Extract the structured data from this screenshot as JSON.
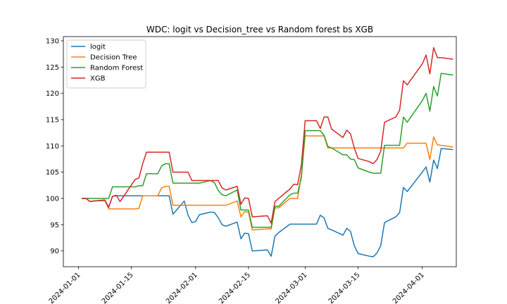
{
  "chart_data": {
    "type": "line",
    "title": "WDC: logit vs Decision_tree vs Random forest bs XGB",
    "xlabel": "",
    "ylabel": "",
    "xlim": [
      "2023-12-28",
      "2024-04-10"
    ],
    "ylim": [
      87.0,
      130.8
    ],
    "x_ticks": [
      "2024-01-01",
      "2024-01-15",
      "2024-02-01",
      "2024-02-15",
      "2024-03-01",
      "2024-03-15",
      "2024-04-01"
    ],
    "y_ticks": [
      90,
      95,
      100,
      105,
      110,
      115,
      120,
      125,
      130
    ],
    "grid": false,
    "legend_position": "upper left",
    "series": [
      {
        "name": "logit",
        "color": "#1f77b4",
        "points": [
          [
            "2024-01-02",
            100.0
          ],
          [
            "2024-01-03",
            100.0
          ],
          [
            "2024-01-04",
            99.4
          ],
          [
            "2024-01-05",
            99.5
          ],
          [
            "2024-01-08",
            99.7
          ],
          [
            "2024-01-09",
            98.3
          ],
          [
            "2024-01-10",
            100.4
          ],
          [
            "2024-01-11",
            100.5
          ],
          [
            "2024-01-12",
            100.5
          ],
          [
            "2024-01-16",
            100.5
          ],
          [
            "2024-01-17",
            100.5
          ],
          [
            "2024-01-18",
            100.5
          ],
          [
            "2024-01-19",
            100.5
          ],
          [
            "2024-01-22",
            100.5
          ],
          [
            "2024-01-23",
            100.5
          ],
          [
            "2024-01-24",
            100.5
          ],
          [
            "2024-01-25",
            100.5
          ],
          [
            "2024-01-26",
            97.0
          ],
          [
            "2024-01-29",
            99.5
          ],
          [
            "2024-01-30",
            96.8
          ],
          [
            "2024-01-31",
            95.4
          ],
          [
            "2024-02-01",
            95.6
          ],
          [
            "2024-02-02",
            96.9
          ],
          [
            "2024-02-05",
            97.4
          ],
          [
            "2024-02-06",
            97.3
          ],
          [
            "2024-02-07",
            96.3
          ],
          [
            "2024-02-08",
            95.0
          ],
          [
            "2024-02-09",
            94.7
          ],
          [
            "2024-02-12",
            95.5
          ],
          [
            "2024-02-13",
            92.3
          ],
          [
            "2024-02-14",
            93.4
          ],
          [
            "2024-02-15",
            93.3
          ],
          [
            "2024-02-16",
            90.0
          ],
          [
            "2024-02-20",
            90.2
          ],
          [
            "2024-02-21",
            89.0
          ],
          [
            "2024-02-22",
            92.8
          ],
          [
            "2024-02-23",
            93.5
          ],
          [
            "2024-02-26",
            95.1
          ],
          [
            "2024-02-27",
            95.1
          ],
          [
            "2024-02-28",
            95.1
          ],
          [
            "2024-02-29",
            95.1
          ],
          [
            "2024-03-01",
            95.1
          ],
          [
            "2024-03-04",
            95.1
          ],
          [
            "2024-03-05",
            96.8
          ],
          [
            "2024-03-06",
            96.3
          ],
          [
            "2024-03-07",
            94.3
          ],
          [
            "2024-03-08",
            94.0
          ],
          [
            "2024-03-11",
            93.0
          ],
          [
            "2024-03-12",
            94.3
          ],
          [
            "2024-03-13",
            93.7
          ],
          [
            "2024-03-14",
            91.0
          ],
          [
            "2024-03-15",
            89.5
          ],
          [
            "2024-03-18",
            89.0
          ],
          [
            "2024-03-19",
            88.9
          ],
          [
            "2024-03-20",
            89.6
          ],
          [
            "2024-03-21",
            91.0
          ],
          [
            "2024-03-22",
            95.4
          ],
          [
            "2024-03-25",
            96.5
          ],
          [
            "2024-03-26",
            97.3
          ],
          [
            "2024-03-27",
            102.1
          ],
          [
            "2024-03-28",
            101.3
          ],
          [
            "2024-04-01",
            105.0
          ],
          [
            "2024-04-02",
            106.0
          ],
          [
            "2024-04-03",
            103.1
          ],
          [
            "2024-04-04",
            107.3
          ],
          [
            "2024-04-05",
            105.7
          ],
          [
            "2024-04-06",
            109.5
          ],
          [
            "2024-04-09",
            109.3
          ]
        ]
      },
      {
        "name": "Decision Tree",
        "color": "#ff7f0e",
        "points": [
          [
            "2024-01-02",
            100.0
          ],
          [
            "2024-01-03",
            100.0
          ],
          [
            "2024-01-04",
            99.4
          ],
          [
            "2024-01-05",
            99.5
          ],
          [
            "2024-01-08",
            99.6
          ],
          [
            "2024-01-09",
            98.0
          ],
          [
            "2024-01-10",
            98.0
          ],
          [
            "2024-01-11",
            98.0
          ],
          [
            "2024-01-12",
            98.0
          ],
          [
            "2024-01-16",
            98.0
          ],
          [
            "2024-01-17",
            98.1
          ],
          [
            "2024-01-18",
            100.5
          ],
          [
            "2024-01-19",
            100.5
          ],
          [
            "2024-01-22",
            100.5
          ],
          [
            "2024-01-23",
            102.0
          ],
          [
            "2024-01-24",
            102.3
          ],
          [
            "2024-01-25",
            102.3
          ],
          [
            "2024-01-26",
            98.7
          ],
          [
            "2024-01-29",
            98.7
          ],
          [
            "2024-01-30",
            98.7
          ],
          [
            "2024-01-31",
            98.7
          ],
          [
            "2024-02-01",
            98.7
          ],
          [
            "2024-02-02",
            98.7
          ],
          [
            "2024-02-05",
            98.7
          ],
          [
            "2024-02-06",
            98.7
          ],
          [
            "2024-02-07",
            98.7
          ],
          [
            "2024-02-08",
            98.7
          ],
          [
            "2024-02-09",
            98.7
          ],
          [
            "2024-02-12",
            99.5
          ],
          [
            "2024-02-13",
            96.5
          ],
          [
            "2024-02-14",
            97.5
          ],
          [
            "2024-02-15",
            97.4
          ],
          [
            "2024-02-16",
            94.0
          ],
          [
            "2024-02-20",
            94.2
          ],
          [
            "2024-02-21",
            94.2
          ],
          [
            "2024-02-22",
            98.2
          ],
          [
            "2024-02-23",
            98.2
          ],
          [
            "2024-02-26",
            100.0
          ],
          [
            "2024-02-27",
            100.0
          ],
          [
            "2024-02-28",
            100.0
          ],
          [
            "2024-02-29",
            104.5
          ],
          [
            "2024-03-01",
            111.9
          ],
          [
            "2024-03-04",
            111.9
          ],
          [
            "2024-03-05",
            111.9
          ],
          [
            "2024-03-06",
            111.9
          ],
          [
            "2024-03-07",
            109.6
          ],
          [
            "2024-03-08",
            109.6
          ],
          [
            "2024-03-11",
            109.6
          ],
          [
            "2024-03-12",
            109.6
          ],
          [
            "2024-03-13",
            109.6
          ],
          [
            "2024-03-14",
            109.6
          ],
          [
            "2024-03-15",
            109.6
          ],
          [
            "2024-03-18",
            109.6
          ],
          [
            "2024-03-19",
            109.6
          ],
          [
            "2024-03-20",
            109.6
          ],
          [
            "2024-03-21",
            109.6
          ],
          [
            "2024-03-22",
            109.6
          ],
          [
            "2024-03-25",
            109.6
          ],
          [
            "2024-03-26",
            109.6
          ],
          [
            "2024-03-27",
            109.6
          ],
          [
            "2024-03-28",
            110.5
          ],
          [
            "2024-04-01",
            110.5
          ],
          [
            "2024-04-02",
            110.5
          ],
          [
            "2024-04-03",
            107.4
          ],
          [
            "2024-04-04",
            111.7
          ],
          [
            "2024-04-05",
            110.2
          ],
          [
            "2024-04-06",
            110.1
          ],
          [
            "2024-04-09",
            109.8
          ]
        ]
      },
      {
        "name": "Random Forest",
        "color": "#2ca02c",
        "points": [
          [
            "2024-01-02",
            100.0
          ],
          [
            "2024-01-03",
            100.0
          ],
          [
            "2024-01-04",
            100.0
          ],
          [
            "2024-01-05",
            100.0
          ],
          [
            "2024-01-08",
            100.0
          ],
          [
            "2024-01-09",
            100.0
          ],
          [
            "2024-01-10",
            102.2
          ],
          [
            "2024-01-11",
            102.2
          ],
          [
            "2024-01-12",
            102.2
          ],
          [
            "2024-01-16",
            102.2
          ],
          [
            "2024-01-17",
            102.4
          ],
          [
            "2024-01-18",
            102.4
          ],
          [
            "2024-01-19",
            104.7
          ],
          [
            "2024-01-22",
            104.7
          ],
          [
            "2024-01-23",
            106.2
          ],
          [
            "2024-01-24",
            106.6
          ],
          [
            "2024-01-25",
            106.6
          ],
          [
            "2024-01-26",
            102.9
          ],
          [
            "2024-01-29",
            102.9
          ],
          [
            "2024-01-30",
            102.9
          ],
          [
            "2024-01-31",
            102.9
          ],
          [
            "2024-02-01",
            102.9
          ],
          [
            "2024-02-02",
            102.9
          ],
          [
            "2024-02-05",
            103.4
          ],
          [
            "2024-02-06",
            103.0
          ],
          [
            "2024-02-07",
            101.5
          ],
          [
            "2024-02-08",
            100.7
          ],
          [
            "2024-02-09",
            100.5
          ],
          [
            "2024-02-12",
            101.6
          ],
          [
            "2024-02-13",
            97.8
          ],
          [
            "2024-02-14",
            97.8
          ],
          [
            "2024-02-15",
            97.8
          ],
          [
            "2024-02-16",
            94.5
          ],
          [
            "2024-02-20",
            94.5
          ],
          [
            "2024-02-21",
            94.5
          ],
          [
            "2024-02-22",
            98.5
          ],
          [
            "2024-02-23",
            98.5
          ],
          [
            "2024-02-26",
            100.7
          ],
          [
            "2024-02-27",
            101.0
          ],
          [
            "2024-02-28",
            101.0
          ],
          [
            "2024-02-29",
            104.0
          ],
          [
            "2024-03-01",
            112.9
          ],
          [
            "2024-03-04",
            112.9
          ],
          [
            "2024-03-05",
            112.9
          ],
          [
            "2024-03-06",
            112.0
          ],
          [
            "2024-03-07",
            109.9
          ],
          [
            "2024-03-08",
            109.6
          ],
          [
            "2024-03-11",
            108.3
          ],
          [
            "2024-03-12",
            108.3
          ],
          [
            "2024-03-13",
            107.5
          ],
          [
            "2024-03-14",
            107.4
          ],
          [
            "2024-03-15",
            105.8
          ],
          [
            "2024-03-18",
            105.0
          ],
          [
            "2024-03-19",
            104.8
          ],
          [
            "2024-03-20",
            104.8
          ],
          [
            "2024-03-21",
            104.8
          ],
          [
            "2024-03-22",
            110.1
          ],
          [
            "2024-03-25",
            110.1
          ],
          [
            "2024-03-26",
            110.1
          ],
          [
            "2024-03-27",
            115.5
          ],
          [
            "2024-03-28",
            114.5
          ],
          [
            "2024-04-01",
            118.6
          ],
          [
            "2024-04-02",
            120.0
          ],
          [
            "2024-04-03",
            116.6
          ],
          [
            "2024-04-04",
            121.3
          ],
          [
            "2024-04-05",
            119.5
          ],
          [
            "2024-04-06",
            123.8
          ],
          [
            "2024-04-09",
            123.5
          ]
        ]
      },
      {
        "name": "XGB",
        "color": "#d62728",
        "points": [
          [
            "2024-01-02",
            100.0
          ],
          [
            "2024-01-03",
            100.0
          ],
          [
            "2024-01-04",
            99.4
          ],
          [
            "2024-01-05",
            99.5
          ],
          [
            "2024-01-08",
            99.6
          ],
          [
            "2024-01-09",
            98.3
          ],
          [
            "2024-01-10",
            100.4
          ],
          [
            "2024-01-11",
            100.6
          ],
          [
            "2024-01-12",
            99.4
          ],
          [
            "2024-01-16",
            103.6
          ],
          [
            "2024-01-17",
            103.9
          ],
          [
            "2024-01-18",
            106.6
          ],
          [
            "2024-01-19",
            108.8
          ],
          [
            "2024-01-22",
            108.8
          ],
          [
            "2024-01-23",
            108.8
          ],
          [
            "2024-01-24",
            108.8
          ],
          [
            "2024-01-25",
            108.8
          ],
          [
            "2024-01-26",
            105.0
          ],
          [
            "2024-01-29",
            105.0
          ],
          [
            "2024-01-30",
            105.0
          ],
          [
            "2024-01-31",
            103.4
          ],
          [
            "2024-02-01",
            103.4
          ],
          [
            "2024-02-02",
            103.4
          ],
          [
            "2024-02-05",
            103.4
          ],
          [
            "2024-02-06",
            103.4
          ],
          [
            "2024-02-07",
            103.4
          ],
          [
            "2024-02-08",
            102.0
          ],
          [
            "2024-02-09",
            101.6
          ],
          [
            "2024-02-12",
            102.3
          ],
          [
            "2024-02-13",
            98.9
          ],
          [
            "2024-02-14",
            100.1
          ],
          [
            "2024-02-15",
            100.0
          ],
          [
            "2024-02-16",
            96.5
          ],
          [
            "2024-02-20",
            96.7
          ],
          [
            "2024-02-21",
            95.3
          ],
          [
            "2024-02-22",
            99.4
          ],
          [
            "2024-02-23",
            100.0
          ],
          [
            "2024-02-26",
            101.8
          ],
          [
            "2024-02-27",
            102.7
          ],
          [
            "2024-02-28",
            102.6
          ],
          [
            "2024-02-29",
            106.4
          ],
          [
            "2024-03-01",
            114.8
          ],
          [
            "2024-03-04",
            114.8
          ],
          [
            "2024-03-05",
            113.3
          ],
          [
            "2024-03-06",
            115.5
          ],
          [
            "2024-03-07",
            115.5
          ],
          [
            "2024-03-08",
            113.2
          ],
          [
            "2024-03-11",
            111.6
          ],
          [
            "2024-03-12",
            113.0
          ],
          [
            "2024-03-13",
            112.3
          ],
          [
            "2024-03-14",
            109.6
          ],
          [
            "2024-03-15",
            107.6
          ],
          [
            "2024-03-18",
            107.0
          ],
          [
            "2024-03-19",
            106.6
          ],
          [
            "2024-03-20",
            107.4
          ],
          [
            "2024-03-21",
            109.0
          ],
          [
            "2024-03-22",
            114.5
          ],
          [
            "2024-03-25",
            115.5
          ],
          [
            "2024-03-26",
            116.8
          ],
          [
            "2024-03-27",
            122.4
          ],
          [
            "2024-03-28",
            121.6
          ],
          [
            "2024-04-01",
            125.6
          ],
          [
            "2024-04-02",
            127.3
          ],
          [
            "2024-04-03",
            123.7
          ],
          [
            "2024-04-04",
            128.7
          ],
          [
            "2024-04-05",
            126.8
          ],
          [
            "2024-04-06",
            126.8
          ],
          [
            "2024-04-09",
            126.5
          ]
        ]
      }
    ]
  }
}
